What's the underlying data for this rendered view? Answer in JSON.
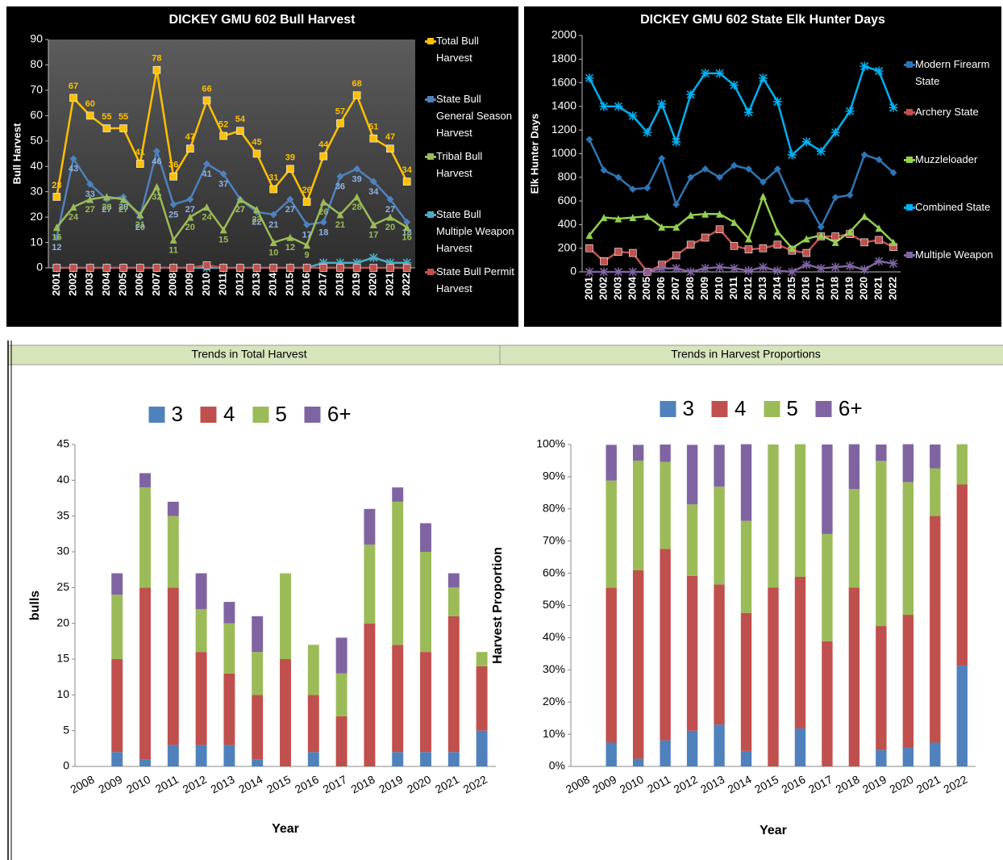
{
  "chart_data": [
    {
      "type": "line",
      "title": "DICKEY  GMU 602 Bull Harvest",
      "y_label": "Bull Harvest",
      "categories": [
        "2001",
        "2002",
        "2003",
        "2004",
        "2005",
        "2006",
        "2007",
        "2008",
        "2009",
        "2010",
        "2011",
        "2012",
        "2013",
        "2014",
        "2015",
        "2016",
        "2017",
        "2018",
        "2019",
        "2020",
        "2021",
        "2022"
      ],
      "ylim": [
        0,
        90
      ],
      "yticks": [
        0,
        10,
        20,
        30,
        40,
        50,
        60,
        70,
        80,
        90
      ],
      "grid": false,
      "legend": "right",
      "series": [
        {
          "name": "Total Bull Harvest",
          "color": "#ffc000",
          "marker": "square",
          "data_labels": true,
          "values": [
            28,
            67,
            60,
            55,
            55,
            41,
            78,
            36,
            47,
            66,
            52,
            54,
            45,
            31,
            39,
            26,
            44,
            57,
            68,
            51,
            47,
            34
          ]
        },
        {
          "name": "State Bull General Season Harvest",
          "color": "#4f81bd",
          "marker": "diamond",
          "data_labels": true,
          "values": [
            12,
            43,
            33,
            27,
            28,
            20,
            46,
            25,
            27,
            41,
            37,
            27,
            22,
            21,
            27,
            17,
            18,
            36,
            39,
            34,
            27,
            18
          ]
        },
        {
          "name": "Tribal Bull Harvest",
          "color": "#9bbb59",
          "marker": "triangle",
          "data_labels": true,
          "values": [
            16,
            24,
            27,
            28,
            27,
            21,
            32,
            11,
            20,
            24,
            15,
            27,
            23,
            10,
            12,
            9,
            26,
            21,
            28,
            17,
            20,
            16
          ]
        },
        {
          "name": "State Bull Multiple Weapon Harvest",
          "color": "#4bacc6",
          "marker": "star",
          "data_labels": false,
          "values": [
            0,
            0,
            0,
            0,
            0,
            0,
            0,
            0,
            0,
            0,
            0,
            0,
            0,
            0,
            0,
            0,
            2,
            2,
            2,
            4,
            2,
            2
          ]
        },
        {
          "name": "State Bull Permit Harvest",
          "color": "#c0504d",
          "marker": "square",
          "data_labels": false,
          "values": [
            0,
            0,
            0,
            0,
            0,
            0,
            0,
            0,
            0,
            1,
            0,
            0,
            0,
            0,
            0,
            0,
            0,
            0,
            0,
            0,
            0,
            0
          ]
        }
      ]
    },
    {
      "type": "line",
      "title": "DICKEY  GMU 602 State Elk Hunter Days",
      "y_label": "Elk Hunter Days",
      "categories": [
        "2001",
        "2002",
        "2003",
        "2004",
        "2005",
        "2006",
        "2007",
        "2008",
        "2009",
        "2010",
        "2011",
        "2012",
        "2013",
        "2014",
        "2015",
        "2016",
        "2017",
        "2018",
        "2019",
        "2020",
        "2021",
        "2022"
      ],
      "ylim": [
        0,
        2000
      ],
      "yticks": [
        0,
        200,
        400,
        600,
        800,
        1000,
        1200,
        1400,
        1600,
        1800,
        2000
      ],
      "grid": false,
      "legend": "right",
      "series": [
        {
          "name": "Modern Firearm State",
          "color": "#2e75b6",
          "marker": "diamond",
          "values": [
            1120,
            860,
            800,
            700,
            710,
            960,
            570,
            800,
            870,
            800,
            900,
            870,
            760,
            870,
            600,
            600,
            380,
            630,
            650,
            990,
            950,
            840
          ]
        },
        {
          "name": "Archery State",
          "color": "#c0504d",
          "marker": "square",
          "values": [
            200,
            90,
            170,
            160,
            0,
            60,
            140,
            230,
            290,
            360,
            220,
            190,
            200,
            230,
            180,
            160,
            300,
            300,
            320,
            250,
            270,
            210
          ]
        },
        {
          "name": "Muzzleloader",
          "color": "#92d050",
          "marker": "triangle",
          "values": [
            310,
            460,
            450,
            460,
            470,
            380,
            380,
            480,
            490,
            490,
            420,
            280,
            640,
            340,
            200,
            280,
            310,
            250,
            340,
            470,
            370,
            250
          ]
        },
        {
          "name": "Combined State",
          "color": "#00b0f0",
          "marker": "star",
          "values": [
            1640,
            1400,
            1400,
            1320,
            1180,
            1420,
            1100,
            1500,
            1680,
            1680,
            1580,
            1350,
            1640,
            1440,
            990,
            1100,
            1020,
            1180,
            1360,
            1740,
            1700,
            1390
          ]
        },
        {
          "name": "Multiple Weapon",
          "color": "#8064a2",
          "marker": "star",
          "values": [
            0,
            0,
            0,
            0,
            0,
            30,
            30,
            0,
            30,
            40,
            30,
            10,
            40,
            10,
            0,
            60,
            30,
            40,
            50,
            20,
            90,
            70
          ]
        }
      ]
    },
    {
      "type": "stacked-bar",
      "title": "Trends in Total Harvest",
      "x_label": "Year",
      "y_label": "bulls",
      "categories": [
        "2008",
        "2009",
        "2010",
        "2011",
        "2012",
        "2013",
        "2014",
        "2015",
        "2016",
        "2017",
        "2018",
        "2019",
        "2020",
        "2021",
        "2022"
      ],
      "ylim": [
        0,
        45
      ],
      "yticks": [
        0,
        5,
        10,
        15,
        20,
        25,
        30,
        35,
        40,
        45
      ],
      "grid": false,
      "legend": "top",
      "series": [
        {
          "name": "3",
          "color": "#4f81bd",
          "values": [
            0,
            2,
            1,
            3,
            3,
            3,
            1,
            0,
            2,
            0,
            0,
            2,
            2,
            2,
            5
          ]
        },
        {
          "name": "4",
          "color": "#c0504d",
          "values": [
            0,
            13,
            24,
            22,
            13,
            10,
            9,
            15,
            8,
            7,
            20,
            15,
            14,
            19,
            9
          ]
        },
        {
          "name": "5",
          "color": "#9bbb59",
          "values": [
            0,
            9,
            14,
            10,
            6,
            7,
            6,
            12,
            7,
            6,
            11,
            20,
            14,
            4,
            2
          ]
        },
        {
          "name": "6+",
          "color": "#8064a2",
          "values": [
            0,
            3,
            2,
            2,
            5,
            3,
            5,
            0,
            0,
            5,
            5,
            2,
            4,
            2,
            0
          ]
        }
      ]
    },
    {
      "type": "stacked-bar",
      "title": "Trends in Harvest Proportions",
      "x_label": "Year",
      "y_label": "Harvest Proportion",
      "categories": [
        "2008",
        "2009",
        "2010",
        "2011",
        "2012",
        "2013",
        "2014",
        "2015",
        "2016",
        "2017",
        "2018",
        "2019",
        "2020",
        "2021",
        "2022"
      ],
      "ylim": [
        0,
        100
      ],
      "yticks": [
        {
          "value": 0,
          "label": "0%"
        },
        {
          "value": 10,
          "label": "10%"
        },
        {
          "value": 20,
          "label": "20%"
        },
        {
          "value": 30,
          "label": "30%"
        },
        {
          "value": 40,
          "label": "40%"
        },
        {
          "value": 50,
          "label": "50%"
        },
        {
          "value": 60,
          "label": "60%"
        },
        {
          "value": 70,
          "label": "70%"
        },
        {
          "value": 80,
          "label": "80%"
        },
        {
          "value": 90,
          "label": "90%"
        },
        {
          "value": 100,
          "label": "100%"
        }
      ],
      "grid": false,
      "legend": "top",
      "series": [
        {
          "name": "3",
          "color": "#4f81bd",
          "values": [
            0,
            7.4,
            2.4,
            8.1,
            11.1,
            13.0,
            4.8,
            0,
            11.8,
            0,
            0,
            5.1,
            5.9,
            7.4,
            31.3
          ]
        },
        {
          "name": "4",
          "color": "#c0504d",
          "values": [
            0,
            48.1,
            58.5,
            59.5,
            48.1,
            43.5,
            42.9,
            55.6,
            47.1,
            38.9,
            55.6,
            38.5,
            41.2,
            70.4,
            56.3
          ]
        },
        {
          "name": "5",
          "color": "#9bbb59",
          "values": [
            0,
            33.3,
            34.1,
            27.0,
            22.2,
            30.4,
            28.6,
            44.4,
            41.2,
            33.3,
            30.6,
            51.3,
            41.2,
            14.8,
            12.5
          ]
        },
        {
          "name": "6+",
          "color": "#8064a2",
          "values": [
            0,
            11.1,
            4.9,
            5.4,
            18.5,
            13.0,
            23.8,
            0,
            0,
            27.8,
            13.9,
            5.1,
            11.8,
            7.4,
            0
          ]
        }
      ]
    }
  ]
}
